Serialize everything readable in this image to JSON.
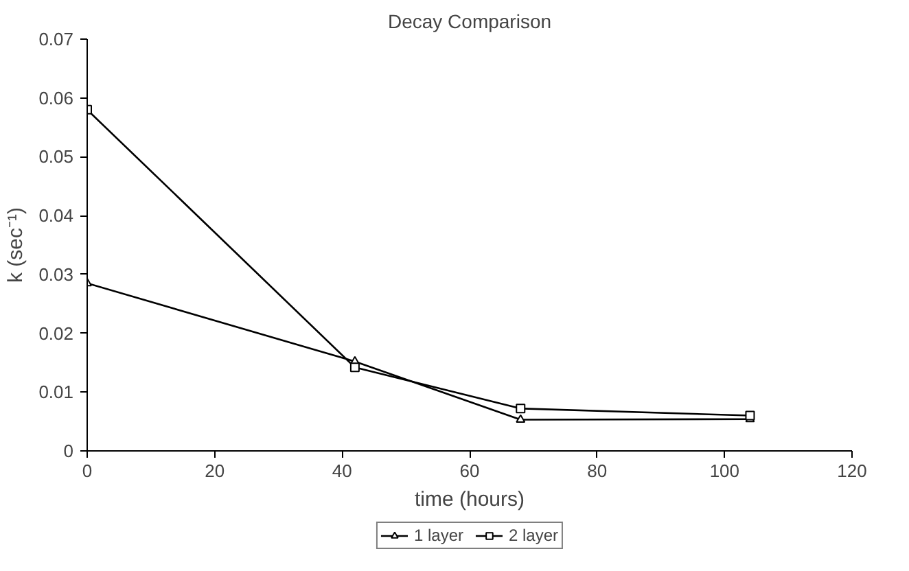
{
  "chart_data": {
    "type": "line",
    "title": "Decay Comparison",
    "xlabel": "time (hours)",
    "ylabel": "k (sec⁻¹)",
    "xlim": [
      0,
      120
    ],
    "xticks": [
      0,
      20,
      40,
      60,
      80,
      100,
      120
    ],
    "ylim": [
      0,
      0.07
    ],
    "yticks": [
      0,
      0.01,
      0.02,
      0.03,
      0.04,
      0.05,
      0.06,
      0.07
    ],
    "grid": false,
    "legend": "bottom",
    "line_style": "solid",
    "series": [
      {
        "name": "1 layer",
        "color": "#000000",
        "marker": "triangle",
        "x": [
          0,
          42,
          68,
          104
        ],
        "values": [
          0.0285,
          0.0152,
          0.0053,
          0.0054
        ]
      },
      {
        "name": "2 layer",
        "color": "#000000",
        "marker": "square",
        "x": [
          0,
          42,
          68,
          104
        ],
        "values": [
          0.058,
          0.0142,
          0.0072,
          0.006
        ]
      }
    ]
  }
}
